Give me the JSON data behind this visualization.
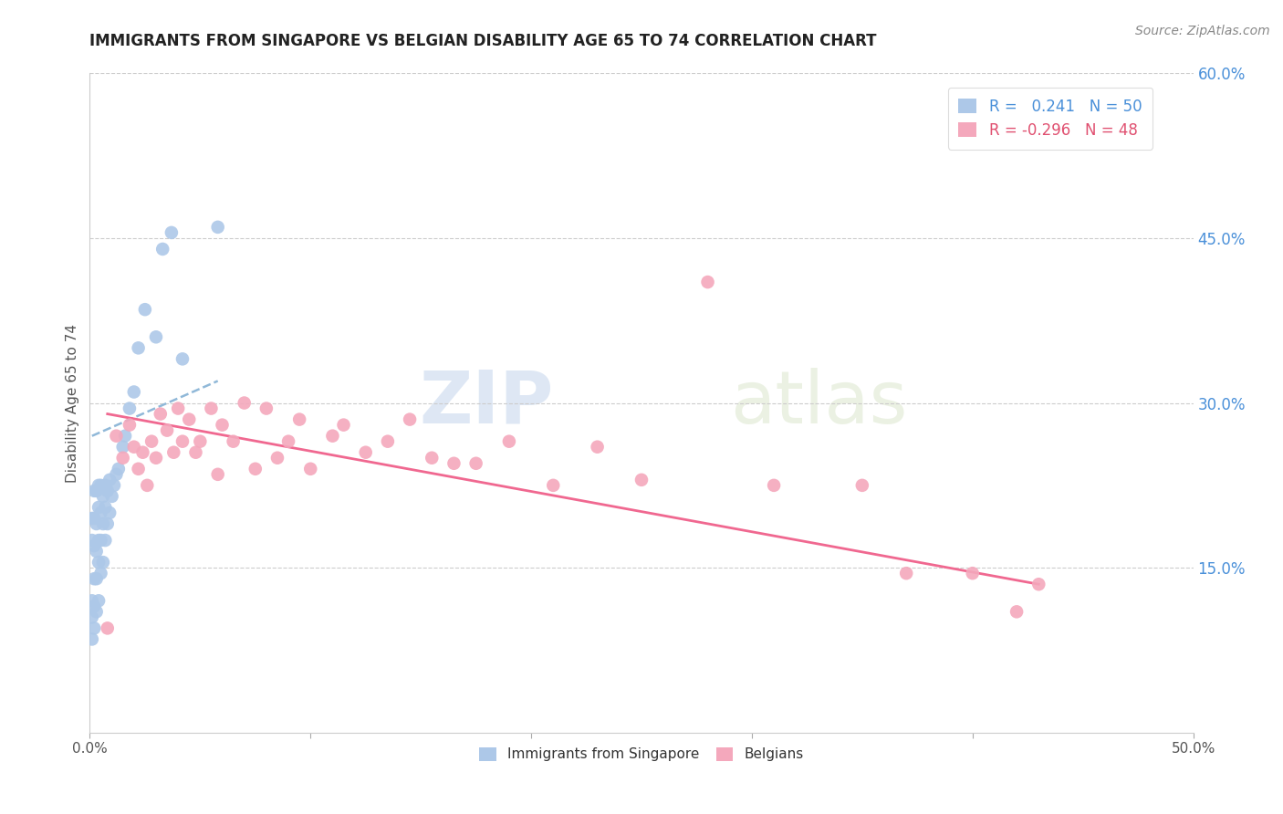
{
  "title": "IMMIGRANTS FROM SINGAPORE VS BELGIAN DISABILITY AGE 65 TO 74 CORRELATION CHART",
  "source": "Source: ZipAtlas.com",
  "ylabel_label": "Disability Age 65 to 74",
  "x_min": 0.0,
  "x_max": 0.5,
  "y_min": 0.0,
  "y_max": 0.6,
  "x_ticks": [
    0.0,
    0.1,
    0.2,
    0.3,
    0.4,
    0.5
  ],
  "x_tick_labels": [
    "0.0%",
    "",
    "",
    "",
    "",
    "50.0%"
  ],
  "y_ticks_right": [
    0.15,
    0.3,
    0.45,
    0.6
  ],
  "y_tick_labels_right": [
    "15.0%",
    "30.0%",
    "45.0%",
    "60.0%"
  ],
  "legend_R1": " 0.241",
  "legend_N1": "50",
  "legend_R2": "-0.296",
  "legend_N2": "48",
  "color_singapore": "#adc8e8",
  "color_belgian": "#f4a8bc",
  "color_singapore_line": "#5b8fbf",
  "color_belgian_line": "#f06890",
  "watermark_zip": "ZIP",
  "watermark_atlas": "atlas",
  "singapore_x": [
    0.001,
    0.001,
    0.001,
    0.001,
    0.001,
    0.002,
    0.002,
    0.002,
    0.002,
    0.002,
    0.002,
    0.003,
    0.003,
    0.003,
    0.003,
    0.003,
    0.004,
    0.004,
    0.004,
    0.004,
    0.004,
    0.005,
    0.005,
    0.005,
    0.005,
    0.006,
    0.006,
    0.006,
    0.007,
    0.007,
    0.007,
    0.008,
    0.008,
    0.009,
    0.009,
    0.01,
    0.011,
    0.012,
    0.013,
    0.015,
    0.016,
    0.018,
    0.02,
    0.022,
    0.025,
    0.03,
    0.033,
    0.037,
    0.042,
    0.058
  ],
  "singapore_y": [
    0.085,
    0.105,
    0.12,
    0.175,
    0.195,
    0.095,
    0.115,
    0.14,
    0.17,
    0.195,
    0.22,
    0.11,
    0.14,
    0.165,
    0.19,
    0.22,
    0.12,
    0.155,
    0.175,
    0.205,
    0.225,
    0.145,
    0.175,
    0.2,
    0.225,
    0.155,
    0.19,
    0.215,
    0.175,
    0.205,
    0.225,
    0.19,
    0.22,
    0.2,
    0.23,
    0.215,
    0.225,
    0.235,
    0.24,
    0.26,
    0.27,
    0.295,
    0.31,
    0.35,
    0.385,
    0.36,
    0.44,
    0.455,
    0.34,
    0.46
  ],
  "belgian_x": [
    0.008,
    0.012,
    0.015,
    0.018,
    0.02,
    0.022,
    0.024,
    0.026,
    0.028,
    0.03,
    0.032,
    0.035,
    0.038,
    0.04,
    0.042,
    0.045,
    0.048,
    0.05,
    0.055,
    0.058,
    0.06,
    0.065,
    0.07,
    0.075,
    0.08,
    0.085,
    0.09,
    0.095,
    0.1,
    0.11,
    0.115,
    0.125,
    0.135,
    0.145,
    0.155,
    0.165,
    0.175,
    0.19,
    0.21,
    0.23,
    0.25,
    0.28,
    0.31,
    0.35,
    0.37,
    0.4,
    0.42,
    0.43
  ],
  "belgian_y": [
    0.095,
    0.27,
    0.25,
    0.28,
    0.26,
    0.24,
    0.255,
    0.225,
    0.265,
    0.25,
    0.29,
    0.275,
    0.255,
    0.295,
    0.265,
    0.285,
    0.255,
    0.265,
    0.295,
    0.235,
    0.28,
    0.265,
    0.3,
    0.24,
    0.295,
    0.25,
    0.265,
    0.285,
    0.24,
    0.27,
    0.28,
    0.255,
    0.265,
    0.285,
    0.25,
    0.245,
    0.245,
    0.265,
    0.225,
    0.26,
    0.23,
    0.41,
    0.225,
    0.225,
    0.145,
    0.145,
    0.11,
    0.135
  ],
  "singapore_line_x0": 0.001,
  "singapore_line_x1": 0.058,
  "singapore_line_y0": 0.27,
  "singapore_line_y1": 0.32,
  "belgian_line_x0": 0.008,
  "belgian_line_x1": 0.43,
  "belgian_line_y0": 0.29,
  "belgian_line_y1": 0.135
}
